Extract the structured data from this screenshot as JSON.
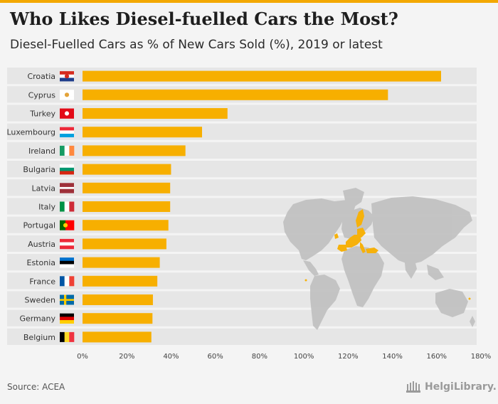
{
  "title": "Who Likes Diesel-fuelled Cars the Most?",
  "subtitle": "Diesel-Fuelled Cars as % of New Cars Sold (%), 2019 or latest",
  "source": "Source: ACEA",
  "logo_text": "HelgiLibrary.",
  "colors": {
    "bar": "#f7af00",
    "band": "#e6e6e6",
    "map_land": "#c2c2c2",
    "map_highlight": "#f7af00",
    "accent": "#f3a800"
  },
  "chart_data": {
    "type": "bar",
    "orientation": "horizontal",
    "title": "Who Likes Diesel-fuelled Cars the Most?",
    "subtitle": "Diesel-Fuelled Cars as % of New Cars Sold (%), 2019 or latest",
    "xlabel": "",
    "ylabel": "",
    "xlim": [
      0,
      180
    ],
    "x_ticks": [
      "0%",
      "20%",
      "40%",
      "60%",
      "80%",
      "100%",
      "120%",
      "140%",
      "160%",
      "180%"
    ],
    "grid": false,
    "categories": [
      "Croatia",
      "Cyprus",
      "Turkey",
      "Luxembourg",
      "Ireland",
      "Bulgaria",
      "Latvia",
      "Italy",
      "Portugal",
      "Austria",
      "Estonia",
      "France",
      "Sweden",
      "Germany",
      "Belgium"
    ],
    "values": [
      162,
      138,
      65.5,
      54,
      46.5,
      40,
      39.6,
      39.6,
      38.8,
      37.9,
      34.9,
      33.8,
      31.8,
      31.6,
      31.1
    ],
    "flag_icons": [
      "croatia-flag-icon",
      "cyprus-flag-icon",
      "turkey-flag-icon",
      "luxembourg-flag-icon",
      "ireland-flag-icon",
      "bulgaria-flag-icon",
      "latvia-flag-icon",
      "italy-flag-icon",
      "portugal-flag-icon",
      "austria-flag-icon",
      "estonia-flag-icon",
      "france-flag-icon",
      "sweden-flag-icon",
      "germany-flag-icon",
      "belgium-flag-icon"
    ]
  }
}
